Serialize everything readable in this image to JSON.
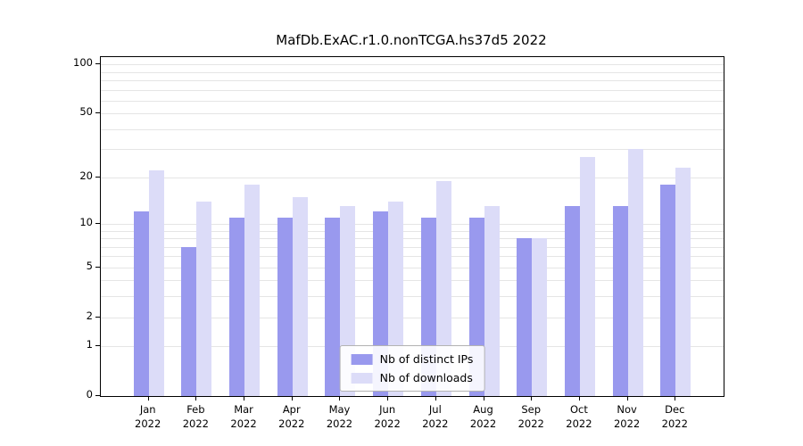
{
  "title": "MafDb.ExAC.r1.0.nonTCGA.hs37d5 2022",
  "chart_data": {
    "type": "bar",
    "title": "MafDb.ExAC.r1.0.nonTCGA.hs37d5 2022",
    "scale": "log1p",
    "categories": [
      "Jan",
      "Feb",
      "Mar",
      "Apr",
      "May",
      "Jun",
      "Jul",
      "Aug",
      "Sep",
      "Oct",
      "Nov",
      "Dec"
    ],
    "year": "2022",
    "series": [
      {
        "name": "Nb of distinct IPs",
        "color": "#9999ee",
        "values": [
          12,
          7,
          11,
          11,
          11,
          12,
          11,
          11,
          8,
          13,
          13,
          18
        ]
      },
      {
        "name": "Nb of downloads",
        "color": "#dcdcf8",
        "values": [
          22,
          14,
          18,
          15,
          13,
          14,
          19,
          13,
          8,
          27,
          30,
          23
        ]
      }
    ],
    "yticks": [
      0,
      1,
      2,
      5,
      10,
      20,
      50,
      100
    ],
    "minor_gridlines": [
      3,
      4,
      6,
      7,
      8,
      9,
      30,
      40,
      60,
      70,
      80,
      90
    ],
    "ylim": [
      0,
      111
    ],
    "xlabel": "",
    "ylabel": "",
    "grid": true,
    "legend_position": "bottom-center"
  }
}
